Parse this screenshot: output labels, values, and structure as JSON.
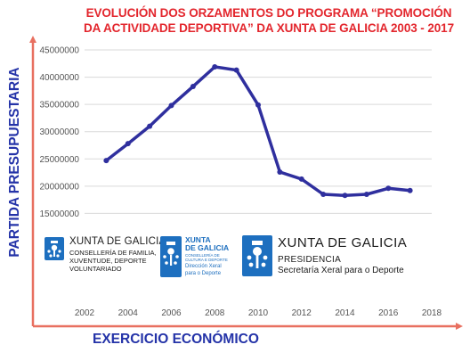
{
  "colors": {
    "title": "#e3262d",
    "axis_label": "#2433a8",
    "line": "#2f2f9e",
    "axes_arrows": "#e87060",
    "logo_blue": "#1d6fbf"
  },
  "chart_data": {
    "type": "line",
    "title_lines": [
      "EVOLUCIÓN DOS ORZAMENTOS DO PROGRAMA “PROMOCIÓN",
      "DA ACTIVIDADE DEPORTIVA” DA XUNTA DE GALICIA 2003 - 2017"
    ],
    "ylabel": "PARTIDA PRESUPUESTARIA",
    "xlabel": "EXERCICIO ECONÓMICO",
    "xlim": [
      2002,
      2018
    ],
    "ylim": [
      10000000,
      45000000
    ],
    "x_ticks": [
      "2002",
      "2004",
      "2006",
      "2008",
      "2010",
      "2012",
      "2014",
      "2016",
      "2018"
    ],
    "y_ticks": [
      "15000000",
      "20000000",
      "25000000",
      "30000000",
      "35000000",
      "40000000",
      "45000000"
    ],
    "grid": "horizontal",
    "x": [
      2003,
      2004,
      2005,
      2006,
      2007,
      2008,
      2009,
      2010,
      2011,
      2012,
      2013,
      2014,
      2015,
      2016,
      2017
    ],
    "y": [
      24700000,
      27800000,
      31000000,
      34800000,
      38300000,
      41900000,
      41300000,
      34900000,
      22600000,
      21300000,
      18500000,
      18300000,
      18500000,
      19600000,
      19200000
    ]
  },
  "logos": {
    "logo1": {
      "name": "XUNTA DE GALICIA",
      "sub": [
        "CONSELLERÍA DE FAMILIA,",
        "XUVENTUDE, DEPORTE",
        "VOLUNTARIADO"
      ]
    },
    "logo2": {
      "name_lines": [
        "XUNTA",
        "DE GALICIA"
      ],
      "sub1": [
        "CONSELLERÍA DE",
        "CULTURA E DEPORTE"
      ],
      "sub2": [
        "Dirección Xeral",
        "para o Deporte"
      ]
    },
    "logo3": {
      "name": "XUNTA DE GALICIA",
      "sub1": "PRESIDENCIA",
      "sub2": "Secretaría Xeral para o Deporte"
    }
  }
}
